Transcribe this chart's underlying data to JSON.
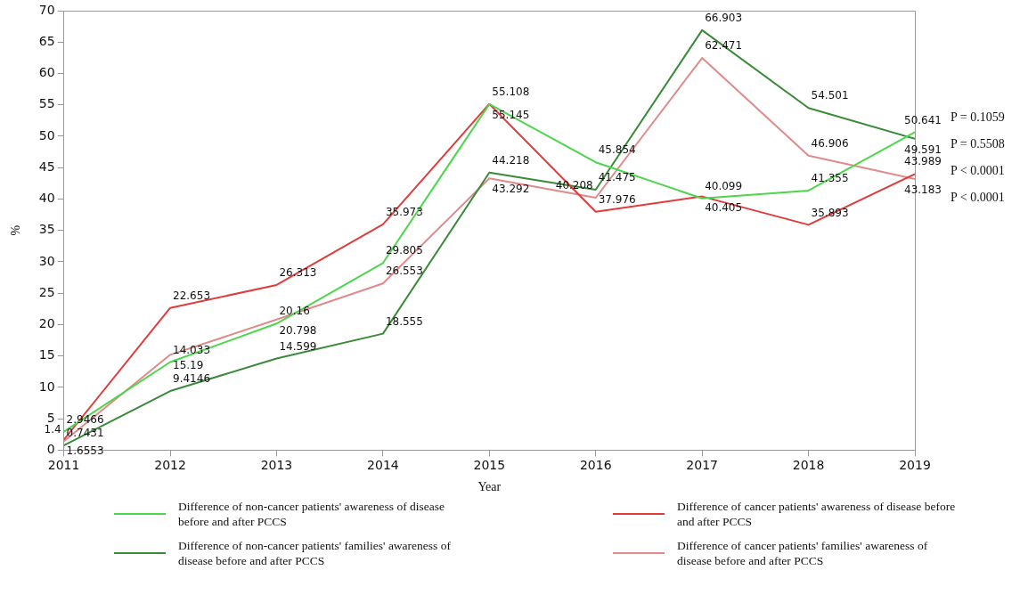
{
  "chart_data": {
    "type": "line",
    "xlabel": "Year",
    "ylabel": "%",
    "x": [
      2011,
      2012,
      2013,
      2014,
      2015,
      2016,
      2017,
      2018,
      2019
    ],
    "xlim": [
      2011,
      2019
    ],
    "xticks": [
      2011,
      2012,
      2013,
      2014,
      2015,
      2016,
      2017,
      2018,
      2019
    ],
    "ylim": [
      0,
      70
    ],
    "yticks": [
      0,
      5,
      10,
      15,
      20,
      25,
      30,
      35,
      40,
      45,
      50,
      55,
      60,
      65,
      70
    ],
    "series": [
      {
        "name": "Difference of non-cancer patients' awareness of disease before and after PCCS",
        "color": "#4cd64c",
        "values": [
          2.9466,
          14.033,
          20.16,
          29.805,
          55.108,
          45.854,
          40.099,
          41.355,
          50.641
        ]
      },
      {
        "name": "Difference of cancer patients' awareness of disease before and after PCCS",
        "color": "#e03c3c",
        "values": [
          1.6553,
          22.653,
          26.313,
          35.973,
          55.145,
          37.976,
          40.405,
          35.893,
          43.989
        ]
      },
      {
        "name": "Difference of non-cancer patients' families' awareness of disease before and after PCCS",
        "color": "#3a8a3a",
        "values": [
          0.7431,
          9.4146,
          14.599,
          18.555,
          44.218,
          41.475,
          66.903,
          54.501,
          49.591
        ]
      },
      {
        "name": "Difference of cancer patients' families' awareness of disease before and after PCCS",
        "color": "#e08a8a",
        "values": [
          1.4,
          15.19,
          20.798,
          26.553,
          43.292,
          40.208,
          62.471,
          46.906,
          43.183
        ]
      }
    ],
    "data_labels": true,
    "grid": false,
    "legend": "bottom",
    "marker": "none",
    "line_style": "solid",
    "annotations": [
      "P = 0.1059",
      "P = 0.5508",
      "P < 0.0001",
      "P < 0.0001"
    ]
  }
}
